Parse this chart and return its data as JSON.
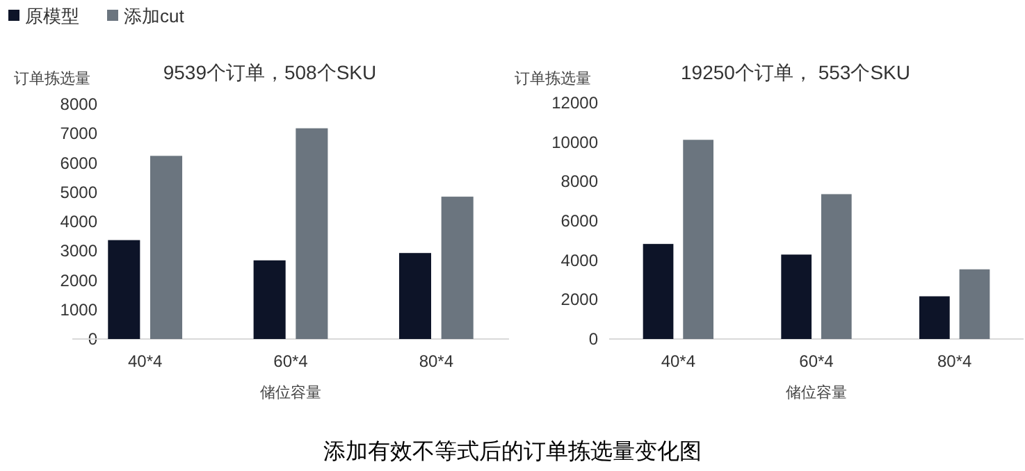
{
  "chart_data": [
    {
      "type": "bar",
      "title": "9539个订单，508个SKU",
      "ylabel": "订单拣选量",
      "xlabel": "储位容量",
      "categories": [
        "40*4",
        "60*4",
        "80*4"
      ],
      "series": [
        {
          "name": "原模型",
          "color": "#0d1428",
          "values": [
            3370,
            2680,
            2930
          ]
        },
        {
          "name": "添加cut",
          "color": "#6b757f",
          "values": [
            6240,
            7180,
            4850
          ]
        }
      ],
      "ylim": [
        0,
        8000
      ],
      "yticks": [
        0,
        1000,
        2000,
        3000,
        4000,
        5000,
        6000,
        7000,
        8000
      ],
      "legend": "top left",
      "grid": false,
      "annotations": [
        "添加有效不等式后的订单拣选量变化图"
      ]
    },
    {
      "type": "bar",
      "title": "19250个订单， 553个SKU",
      "ylabel": "订单拣选量",
      "xlabel": "储位容量",
      "categories": [
        "40*4",
        "60*4",
        "80*4"
      ],
      "series": [
        {
          "color": "#0d1428",
          "values": [
            4830,
            4290,
            2170
          ]
        },
        {
          "color": "#6b757f",
          "values": [
            10120,
            7360,
            3540
          ]
        }
      ],
      "ylim": [
        0,
        12000
      ],
      "yticks": [
        0,
        2000,
        4000,
        6000,
        8000,
        10000,
        12000
      ],
      "grid": false
    }
  ]
}
